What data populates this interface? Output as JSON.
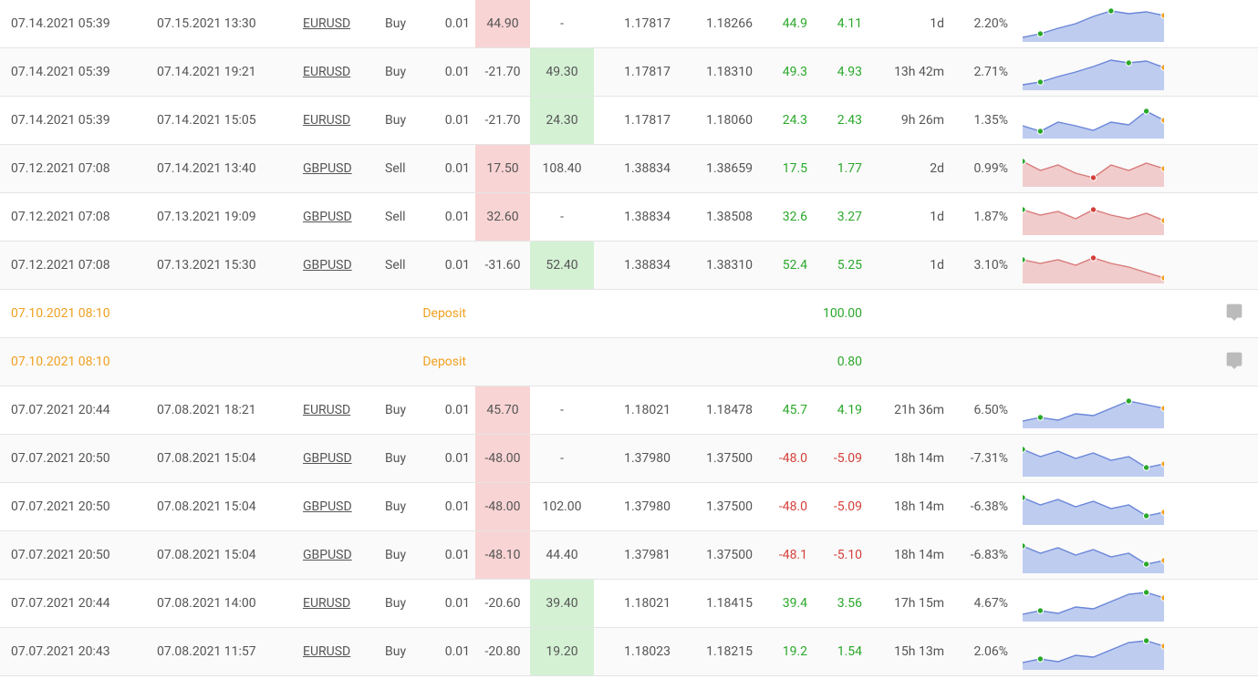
{
  "colors": {
    "row_bg": "#ffffff",
    "row_alt_bg": "#fafafa",
    "border": "#e5e5e5",
    "text": "#555555",
    "green": "#2aa82a",
    "red": "#d43f3a",
    "green_bg": "#d4f1d4",
    "red_bg": "#f9d4d4",
    "orange": "#f0a020",
    "buy_fill": "#b7c7ee",
    "buy_stroke": "#6a86d8",
    "sell_fill": "#f0c7c7",
    "sell_stroke": "#d87a7a",
    "marker_green": "#2aa82a",
    "marker_orange": "#f0a020",
    "marker_red": "#d43f3a"
  },
  "spark": {
    "width": 155,
    "height": 40
  },
  "rows": [
    {
      "type": "trade",
      "open": "07.14.2021 05:39",
      "close": "07.15.2021 13:30",
      "symbol": "EURUSD",
      "action": "Buy",
      "lot": "0.01",
      "pips": "44.90",
      "pips_bg": "red",
      "net": "-",
      "p1": "1.17817",
      "p2": "1.18266",
      "v1": "44.9",
      "v1_color": "green",
      "v2": "4.11",
      "v2_color": "green",
      "dur": "1d",
      "pct": "2.20%",
      "chart": {
        "dir": "buy",
        "points": [
          5,
          9,
          15,
          20,
          28,
          34,
          31,
          33,
          29
        ],
        "m1": 1,
        "m2": 5,
        "m3": 8
      }
    },
    {
      "type": "trade",
      "open": "07.14.2021 05:39",
      "close": "07.14.2021 19:21",
      "symbol": "EURUSD",
      "action": "Buy",
      "lot": "0.01",
      "pips": "-21.70",
      "net": "49.30",
      "net_bg": "green",
      "p1": "1.17817",
      "p2": "1.18310",
      "v1": "49.3",
      "v1_color": "green",
      "v2": "4.93",
      "v2_color": "green",
      "dur": "13h 42m",
      "pct": "2.71%",
      "chart": {
        "dir": "buy",
        "points": [
          6,
          9,
          15,
          20,
          26,
          33,
          30,
          32,
          25
        ],
        "m1": 1,
        "m2": 6,
        "m3": 8
      }
    },
    {
      "type": "trade",
      "open": "07.14.2021 05:39",
      "close": "07.14.2021 15:05",
      "symbol": "EURUSD",
      "action": "Buy",
      "lot": "0.01",
      "pips": "-21.70",
      "net": "24.30",
      "net_bg": "green",
      "p1": "1.17817",
      "p2": "1.18060",
      "v1": "24.3",
      "v1_color": "green",
      "v2": "2.43",
      "v2_color": "green",
      "dur": "9h 26m",
      "pct": "1.35%",
      "chart": {
        "dir": "buy",
        "points": [
          14,
          8,
          18,
          14,
          9,
          18,
          15,
          30,
          20
        ],
        "m1": 1,
        "m2": 7,
        "m3": 8
      }
    },
    {
      "type": "trade",
      "open": "07.12.2021 07:08",
      "close": "07.14.2021 13:40",
      "symbol": "GBPUSD",
      "action": "Sell",
      "lot": "0.01",
      "pips": "17.50",
      "pips_bg": "red",
      "net": "108.40",
      "p1": "1.38834",
      "p2": "1.38659",
      "v1": "17.5",
      "v1_color": "green",
      "v2": "1.77",
      "v2_color": "green",
      "dur": "2d",
      "pct": "0.99%",
      "chart": {
        "dir": "sell",
        "points": [
          28,
          18,
          24,
          15,
          10,
          24,
          18,
          26,
          20
        ],
        "m1": 0,
        "m2": 4,
        "m3": 8
      }
    },
    {
      "type": "trade",
      "open": "07.12.2021 07:08",
      "close": "07.13.2021 19:09",
      "symbol": "GBPUSD",
      "action": "Sell",
      "lot": "0.01",
      "pips": "32.60",
      "pips_bg": "red",
      "net": "-",
      "p1": "1.38834",
      "p2": "1.38508",
      "v1": "32.6",
      "v1_color": "green",
      "v2": "3.27",
      "v2_color": "green",
      "dur": "1d",
      "pct": "1.87%",
      "chart": {
        "dir": "sell",
        "points": [
          28,
          22,
          26,
          18,
          28,
          22,
          18,
          24,
          16
        ],
        "m1": 0,
        "m2": 4,
        "m3": 8
      }
    },
    {
      "type": "trade",
      "open": "07.12.2021 07:08",
      "close": "07.13.2021 15:30",
      "symbol": "GBPUSD",
      "action": "Sell",
      "lot": "0.01",
      "pips": "-31.60",
      "net": "52.40",
      "net_bg": "green",
      "p1": "1.38834",
      "p2": "1.38310",
      "v1": "52.4",
      "v1_color": "green",
      "v2": "5.25",
      "v2_color": "green",
      "dur": "1d",
      "pct": "3.10%",
      "chart": {
        "dir": "sell",
        "points": [
          26,
          22,
          26,
          20,
          28,
          22,
          18,
          12,
          6
        ],
        "m1": 0,
        "m2": 4,
        "m3": 8
      }
    },
    {
      "type": "deposit",
      "open": "07.10.2021 08:10",
      "label": "Deposit",
      "amount": "100.00"
    },
    {
      "type": "deposit",
      "open": "07.10.2021 08:10",
      "label": "Deposit",
      "amount": "0.80"
    },
    {
      "type": "trade",
      "open": "07.07.2021 20:44",
      "close": "07.08.2021 18:21",
      "symbol": "EURUSD",
      "action": "Buy",
      "lot": "0.01",
      "pips": "45.70",
      "pips_bg": "red",
      "net": "-",
      "p1": "1.18021",
      "p2": "1.18478",
      "v1": "45.7",
      "v1_color": "green",
      "v2": "4.19",
      "v2_color": "green",
      "dur": "21h 36m",
      "pct": "6.50%",
      "chart": {
        "dir": "buy",
        "points": [
          8,
          12,
          9,
          16,
          14,
          22,
          30,
          26,
          22
        ],
        "m1": 1,
        "m2": 6,
        "m3": 8
      }
    },
    {
      "type": "trade",
      "open": "07.07.2021 20:50",
      "close": "07.08.2021 15:04",
      "symbol": "GBPUSD",
      "action": "Buy",
      "lot": "0.01",
      "pips": "-48.00",
      "pips_bg": "red",
      "net": "-",
      "p1": "1.37980",
      "p2": "1.37500",
      "v1": "-48.0",
      "v1_color": "red",
      "v2": "-5.09",
      "v2_color": "red",
      "dur": "18h 14m",
      "pct": "-7.31%",
      "chart": {
        "dir": "buy",
        "points": [
          30,
          22,
          28,
          20,
          26,
          18,
          22,
          10,
          14
        ],
        "m1": 0,
        "m2": 7,
        "m3": 8
      }
    },
    {
      "type": "trade",
      "open": "07.07.2021 20:50",
      "close": "07.08.2021 15:04",
      "symbol": "GBPUSD",
      "action": "Buy",
      "lot": "0.01",
      "pips": "-48.00",
      "pips_bg": "red",
      "net": "102.00",
      "p1": "1.37980",
      "p2": "1.37500",
      "v1": "-48.0",
      "v1_color": "red",
      "v2": "-5.09",
      "v2_color": "red",
      "dur": "18h 14m",
      "pct": "-6.38%",
      "chart": {
        "dir": "buy",
        "points": [
          30,
          22,
          28,
          20,
          26,
          18,
          22,
          10,
          14
        ],
        "m1": 0,
        "m2": 7,
        "m3": 8
      }
    },
    {
      "type": "trade",
      "open": "07.07.2021 20:50",
      "close": "07.08.2021 15:04",
      "symbol": "GBPUSD",
      "action": "Buy",
      "lot": "0.01",
      "pips": "-48.10",
      "pips_bg": "red",
      "net": "44.40",
      "p1": "1.37981",
      "p2": "1.37500",
      "v1": "-48.1",
      "v1_color": "red",
      "v2": "-5.10",
      "v2_color": "red",
      "dur": "18h 14m",
      "pct": "-6.83%",
      "chart": {
        "dir": "buy",
        "points": [
          30,
          22,
          28,
          20,
          26,
          18,
          22,
          10,
          14
        ],
        "m1": 0,
        "m2": 7,
        "m3": 8
      }
    },
    {
      "type": "trade",
      "open": "07.07.2021 20:44",
      "close": "07.08.2021 14:00",
      "symbol": "EURUSD",
      "action": "Buy",
      "lot": "0.01",
      "pips": "-20.60",
      "net": "39.40",
      "net_bg": "green",
      "p1": "1.18021",
      "p2": "1.18415",
      "v1": "39.4",
      "v1_color": "green",
      "v2": "3.56",
      "v2_color": "green",
      "dur": "17h 15m",
      "pct": "4.67%",
      "chart": {
        "dir": "buy",
        "points": [
          8,
          12,
          9,
          16,
          14,
          22,
          30,
          32,
          26
        ],
        "m1": 1,
        "m2": 7,
        "m3": 8
      }
    },
    {
      "type": "trade",
      "open": "07.07.2021 20:43",
      "close": "07.08.2021 11:57",
      "symbol": "EURUSD",
      "action": "Buy",
      "lot": "0.01",
      "pips": "-20.80",
      "net": "19.20",
      "net_bg": "green",
      "p1": "1.18023",
      "p2": "1.18215",
      "v1": "19.2",
      "v1_color": "green",
      "v2": "1.54",
      "v2_color": "green",
      "dur": "15h 13m",
      "pct": "2.06%",
      "chart": {
        "dir": "buy",
        "points": [
          8,
          12,
          9,
          16,
          14,
          22,
          30,
          32,
          26
        ],
        "m1": 1,
        "m2": 7,
        "m3": 8
      }
    }
  ]
}
